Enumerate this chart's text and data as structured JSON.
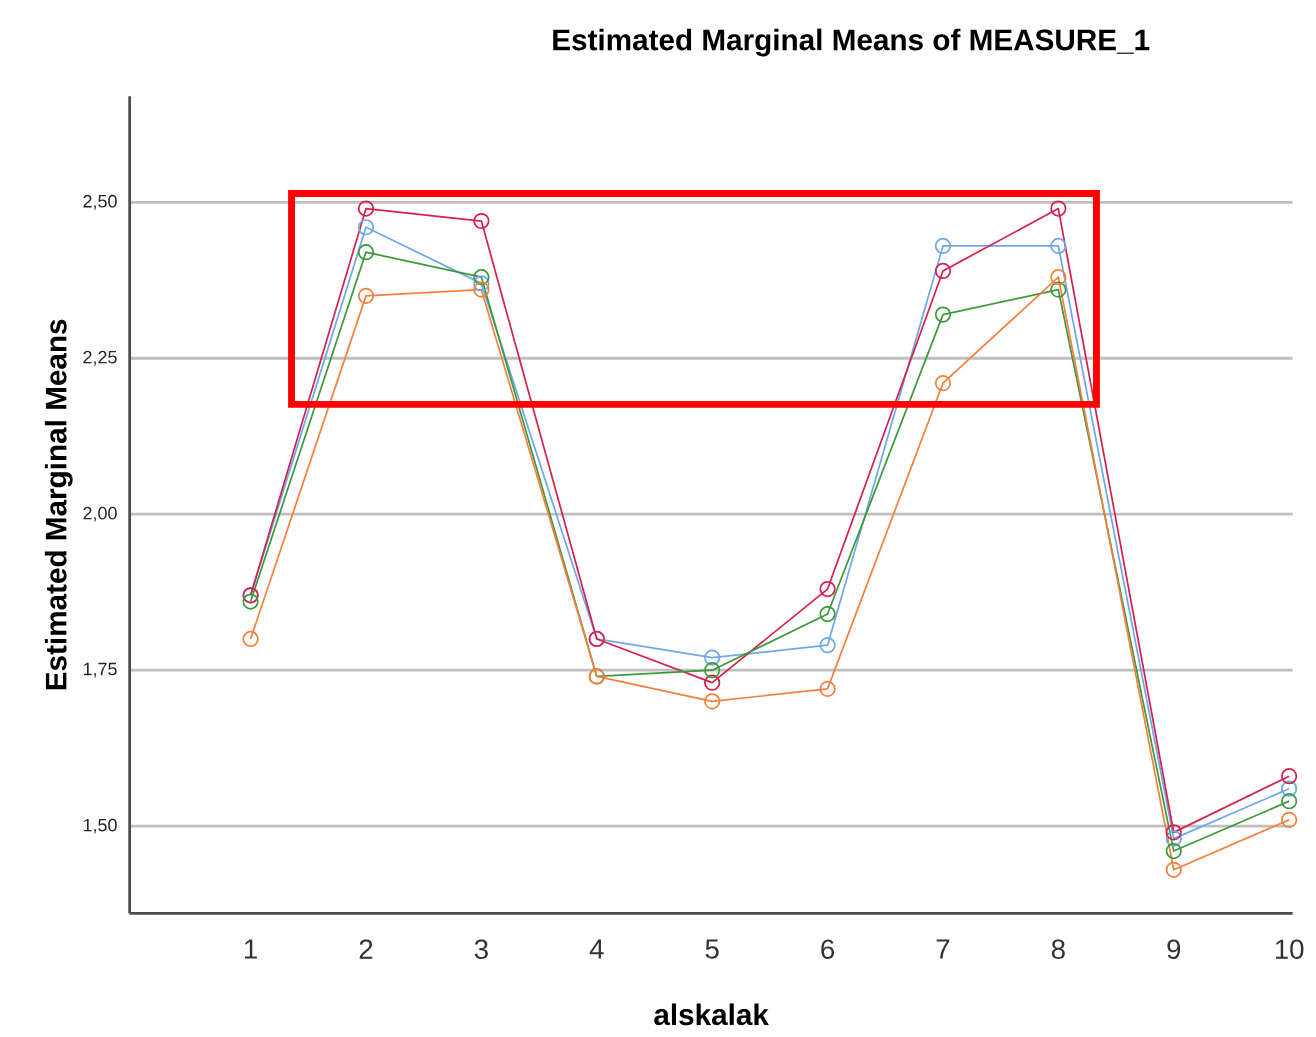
{
  "chart_data": {
    "type": "line",
    "title": "Estimated Marginal Means of MEASURE_1",
    "xlabel": "alskalak",
    "ylabel": "Estimated Marginal Means",
    "categories": [
      "1",
      "2",
      "3",
      "4",
      "5",
      "6",
      "7",
      "8",
      "9",
      "10"
    ],
    "series": [
      {
        "color": "#6fa8e8",
        "values": [
          1.87,
          2.46,
          2.37,
          1.8,
          1.77,
          1.79,
          2.43,
          2.43,
          1.48,
          1.56
        ]
      },
      {
        "color": "#d6214f",
        "values": [
          1.87,
          2.49,
          2.47,
          1.8,
          1.73,
          1.88,
          2.39,
          2.49,
          1.49,
          1.58
        ]
      },
      {
        "color": "#3c9a3c",
        "values": [
          1.86,
          2.42,
          2.38,
          1.74,
          1.75,
          1.84,
          2.32,
          2.36,
          1.46,
          1.54
        ]
      },
      {
        "color": "#f5803e",
        "values": [
          1.8,
          2.35,
          2.36,
          1.74,
          1.7,
          1.72,
          2.21,
          2.38,
          1.43,
          1.51
        ]
      }
    ],
    "ylim": [
      1.36,
      2.67
    ],
    "yticks": [
      {
        "value": 1.5,
        "label": "1,50"
      },
      {
        "value": 1.75,
        "label": "1,75"
      },
      {
        "value": 2.0,
        "label": "2,00"
      },
      {
        "value": 2.25,
        "label": "2,25"
      },
      {
        "value": 2.5,
        "label": "2,50"
      }
    ],
    "grid": "y",
    "marker": "circle",
    "line_style": "solid"
  }
}
